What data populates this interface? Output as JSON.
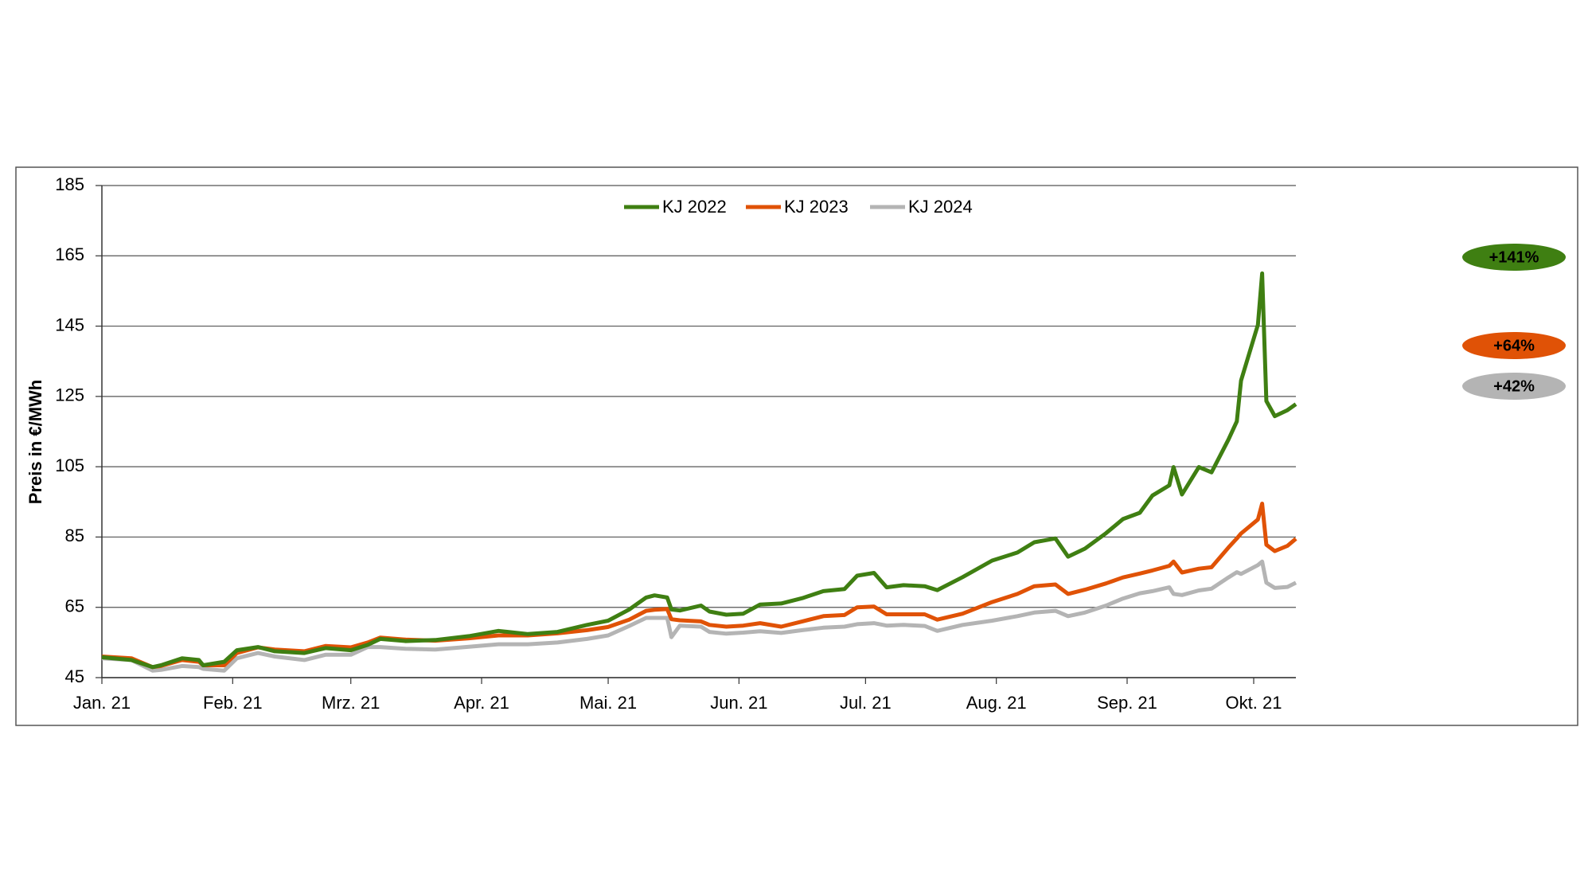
{
  "chart_data": {
    "type": "line",
    "y_label": "Preis in €/MWh",
    "x": [
      0,
      7,
      12,
      14,
      19,
      23,
      24,
      29,
      32,
      37,
      41,
      48,
      53,
      59,
      63,
      66,
      72,
      79,
      87,
      94,
      101,
      108,
      115,
      120,
      125,
      129,
      131,
      134,
      135,
      137,
      142,
      144,
      148,
      152,
      156,
      161,
      166,
      171,
      176,
      179,
      183,
      186,
      190,
      195,
      198,
      204,
      211,
      217,
      221,
      226,
      229,
      233,
      238,
      242,
      246,
      249,
      253,
      254,
      256,
      260,
      263,
      267,
      269,
      270,
      274,
      275,
      276,
      278,
      281,
      283
    ],
    "xlim": [
      0,
      283
    ],
    "xticks": [
      {
        "value": 0,
        "label": "Jan. 21"
      },
      {
        "value": 31,
        "label": "Feb. 21"
      },
      {
        "value": 59,
        "label": "Mrz. 21"
      },
      {
        "value": 90,
        "label": "Apr. 21"
      },
      {
        "value": 120,
        "label": "Mai. 21"
      },
      {
        "value": 151,
        "label": "Jun. 21"
      },
      {
        "value": 181,
        "label": "Jul. 21"
      },
      {
        "value": 212,
        "label": "Aug. 21"
      },
      {
        "value": 243,
        "label": "Sep. 21"
      },
      {
        "value": 273,
        "label": "Okt. 21"
      }
    ],
    "ylim": [
      45,
      185
    ],
    "yticks": [
      45,
      65,
      85,
      105,
      125,
      145,
      165,
      185
    ],
    "grid": true,
    "series": [
      {
        "name": "KJ 2022",
        "color": "#3f7f12",
        "values": [
          50.8,
          50,
          48,
          48.5,
          50.5,
          50,
          48.5,
          49.5,
          52.8,
          53.7,
          52.5,
          52,
          53.4,
          52.8,
          54.3,
          56,
          55.4,
          55.7,
          56.8,
          58.3,
          57.4,
          58,
          60,
          61.2,
          64.4,
          67.8,
          68.4,
          67.8,
          64.4,
          64.1,
          65.5,
          63.8,
          62.9,
          63.2,
          65.8,
          66.1,
          67.6,
          69.6,
          70.2,
          74,
          74.8,
          70.7,
          71.3,
          71,
          69.9,
          73.6,
          78.3,
          80.6,
          83.5,
          84.6,
          79.4,
          81.7,
          86.1,
          90.1,
          91.9,
          96.8,
          99.7,
          104.9,
          97.1,
          104.9,
          103.4,
          112.7,
          117.9,
          129.5,
          145.4,
          160,
          123.7,
          119.4,
          121.1,
          122.8
        ]
      },
      {
        "name": "KJ 2023",
        "color": "#e05206",
        "values": [
          51,
          50.5,
          48,
          48.3,
          50,
          49.5,
          48.5,
          48.5,
          52,
          53.6,
          53,
          52.5,
          54,
          53.6,
          55,
          56.4,
          55.8,
          55.5,
          56.2,
          57,
          57,
          57.6,
          58.5,
          59.4,
          61.5,
          64,
          64.3,
          64.5,
          61.6,
          61.3,
          61,
          60,
          59.5,
          59.8,
          60.5,
          59.5,
          61,
          62.5,
          62.8,
          65,
          65.2,
          63,
          63,
          63,
          61.5,
          63.2,
          66.5,
          68.8,
          71,
          71.5,
          68.8,
          70,
          71.8,
          73.5,
          74.6,
          75.5,
          76.8,
          78,
          74.9,
          76,
          76.4,
          82,
          84.6,
          86,
          90,
          94.5,
          82.8,
          81,
          82.5,
          84.5
        ]
      },
      {
        "name": "KJ 2024",
        "color": "#b4b4b4",
        "values": [
          50.5,
          50,
          47,
          47.2,
          48.3,
          48,
          47.5,
          47,
          50.5,
          52,
          51,
          50,
          51.5,
          51.5,
          53.7,
          53.7,
          53.2,
          53,
          53.8,
          54.5,
          54.5,
          55,
          56,
          57,
          59.7,
          62,
          62,
          62,
          56.5,
          59.8,
          59.5,
          58,
          57.5,
          57.8,
          58.2,
          57.7,
          58.5,
          59.2,
          59.5,
          60.2,
          60.5,
          59.8,
          60,
          59.7,
          58.3,
          60,
          61.2,
          62.5,
          63.5,
          64,
          62.5,
          63.5,
          65.5,
          67.5,
          69,
          69.6,
          70.7,
          68.8,
          68.5,
          69.8,
          70.3,
          73.5,
          75,
          74.5,
          77,
          78,
          72,
          70.5,
          70.8,
          72
        ]
      }
    ],
    "annotations": [
      {
        "text": "+141%",
        "color": "#3f7f12",
        "text_color": "#ffffff"
      },
      {
        "text": "+64%",
        "color": "#e05206",
        "text_color": "#ffffff"
      },
      {
        "text": "+42%",
        "color": "#b4b4b4",
        "text_color": "#000000"
      }
    ]
  }
}
